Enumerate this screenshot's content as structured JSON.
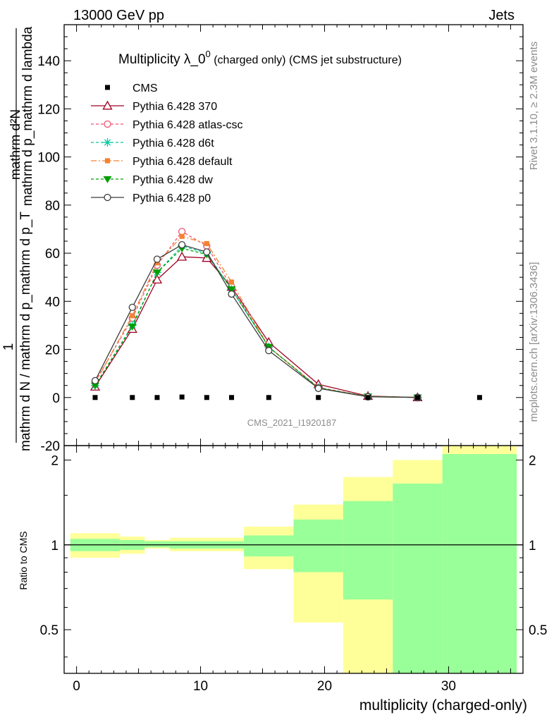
{
  "header": {
    "left": "13000 GeV pp",
    "right": "Jets"
  },
  "side_labels": {
    "rivet": "Rivet 3.1.10, ≥ 2.3M events",
    "mcplots": "mcplots.cern.ch [arXiv:1306.3436]"
  },
  "watermark": "CMS_2021_I1920187",
  "chart_data": [
    {
      "type": "line",
      "title_main": "Multiplicity λ_0",
      "title_sup": "0",
      "title_sub": " (charged only) (CMS jet substructure)",
      "ylabel_top": "mathrm d²N",
      "ylabel_top_2": "mathrm d p_mathrm d lambda",
      "ylabel_one": "1",
      "ylabel_bottom": "mathrm d N / mathrm d p_mathrm d p_T",
      "ylim": [
        -20,
        155
      ],
      "yticks": [
        -20,
        0,
        20,
        40,
        60,
        80,
        100,
        120,
        140
      ],
      "xlim": [
        -1,
        36
      ],
      "legend_position": "top-left",
      "cms": {
        "name": "CMS",
        "color": "#000000",
        "x": [
          1.5,
          4.5,
          6.5,
          8.5,
          10.5,
          12.5,
          15.5,
          19.5,
          23.5,
          27.5,
          32.5
        ],
        "y": [
          0,
          0,
          0,
          0.2,
          0,
          0,
          0,
          0,
          0,
          0,
          0
        ]
      },
      "series": [
        {
          "name": "Pythia 6.428 370",
          "color": "#a00022",
          "dash": "",
          "marker": "triangle-open",
          "x": [
            1.5,
            4.5,
            6.5,
            8.5,
            10.5,
            12.5,
            15.5,
            19.5,
            23.5,
            27.5
          ],
          "y": [
            4.5,
            28.5,
            49,
            58.5,
            58,
            46,
            23,
            5.5,
            0.6,
            0.05
          ]
        },
        {
          "name": "Pythia 6.428 atlas-csc",
          "color": "#f0506e",
          "dash": "4,3",
          "marker": "circle-open",
          "x": [
            1.5,
            4.5,
            6.5,
            8.5,
            10.5,
            12.5,
            15.5,
            19.5,
            23.5,
            27.5
          ],
          "y": [
            6.5,
            33,
            55,
            69,
            63,
            46,
            21,
            4.2,
            0.4,
            0.03
          ]
        },
        {
          "name": "Pythia 6.428 d6t",
          "color": "#00c8a0",
          "dash": "4,3",
          "marker": "star",
          "x": [
            1.5,
            4.5,
            6.5,
            8.5,
            10.5,
            12.5,
            15.5,
            19.5,
            23.5,
            27.5
          ],
          "y": [
            5.0,
            30,
            52,
            63,
            60,
            45,
            21,
            4.0,
            0.4,
            0.03
          ]
        },
        {
          "name": "Pythia 6.428 default",
          "color": "#f58232",
          "dash": "8,3,2,3",
          "marker": "square",
          "x": [
            1.5,
            4.5,
            6.5,
            8.5,
            10.5,
            12.5,
            15.5,
            19.5,
            23.5,
            27.5
          ],
          "y": [
            6.0,
            34,
            56,
            67,
            64,
            48,
            21,
            4.0,
            0.4,
            0.03
          ]
        },
        {
          "name": "Pythia 6.428 dw",
          "color": "#00a000",
          "dash": "4,3",
          "marker": "triangle-down",
          "x": [
            1.5,
            4.5,
            6.5,
            8.5,
            10.5,
            12.5,
            15.5,
            19.5,
            23.5,
            27.5
          ],
          "y": [
            5.0,
            29.5,
            52,
            62,
            59.5,
            45,
            21,
            4.0,
            0.4,
            0.03
          ]
        },
        {
          "name": "Pythia 6.428 p0",
          "color": "#3c3c3c",
          "dash": "",
          "marker": "circle-open",
          "x": [
            1.5,
            4.5,
            6.5,
            8.5,
            10.5,
            12.5,
            15.5,
            19.5,
            23.5,
            27.5
          ],
          "y": [
            7.0,
            37.5,
            57.5,
            63.5,
            60.5,
            43,
            19.5,
            3.8,
            0.3,
            0.02
          ]
        }
      ]
    },
    {
      "type": "area",
      "ylabel": "Ratio to CMS",
      "xlabel": "multiplicity (charged-only)",
      "ylim": [
        0.35,
        2.25
      ],
      "yticks": [
        0.5,
        1,
        2
      ],
      "xlim": [
        -1,
        36
      ],
      "xticks": [
        0,
        10,
        20,
        30
      ],
      "colors": {
        "inner": "#99ff99",
        "outer": "#ffff99",
        "reference": "#000000"
      },
      "bins": [
        {
          "lo": -0.5,
          "hi": 3.5,
          "inner": [
            0.95,
            1.05
          ],
          "outer": [
            0.9,
            1.1
          ]
        },
        {
          "lo": 3.5,
          "hi": 5.5,
          "inner": [
            0.96,
            1.04
          ],
          "outer": [
            0.93,
            1.07
          ]
        },
        {
          "lo": 5.5,
          "hi": 7.5,
          "inner": [
            0.98,
            1.03
          ],
          "outer": [
            0.97,
            1.04
          ]
        },
        {
          "lo": 7.5,
          "hi": 13.5,
          "inner": [
            0.97,
            1.03
          ],
          "outer": [
            0.95,
            1.06
          ]
        },
        {
          "lo": 13.5,
          "hi": 17.5,
          "inner": [
            0.91,
            1.08
          ],
          "outer": [
            0.82,
            1.16
          ]
        },
        {
          "lo": 17.5,
          "hi": 21.5,
          "inner": [
            0.8,
            1.23
          ],
          "outer": [
            0.53,
            1.39
          ]
        },
        {
          "lo": 21.5,
          "hi": 25.5,
          "inner": [
            0.64,
            1.43
          ],
          "outer": [
            0.35,
            1.74
          ]
        },
        {
          "lo": 25.5,
          "hi": 29.5,
          "inner": [
            0.35,
            1.65
          ],
          "outer": [
            0.35,
            2.0
          ]
        },
        {
          "lo": 29.5,
          "hi": 35.5,
          "inner": [
            0.35,
            2.1
          ],
          "outer": [
            0.35,
            2.25
          ]
        }
      ]
    }
  ]
}
